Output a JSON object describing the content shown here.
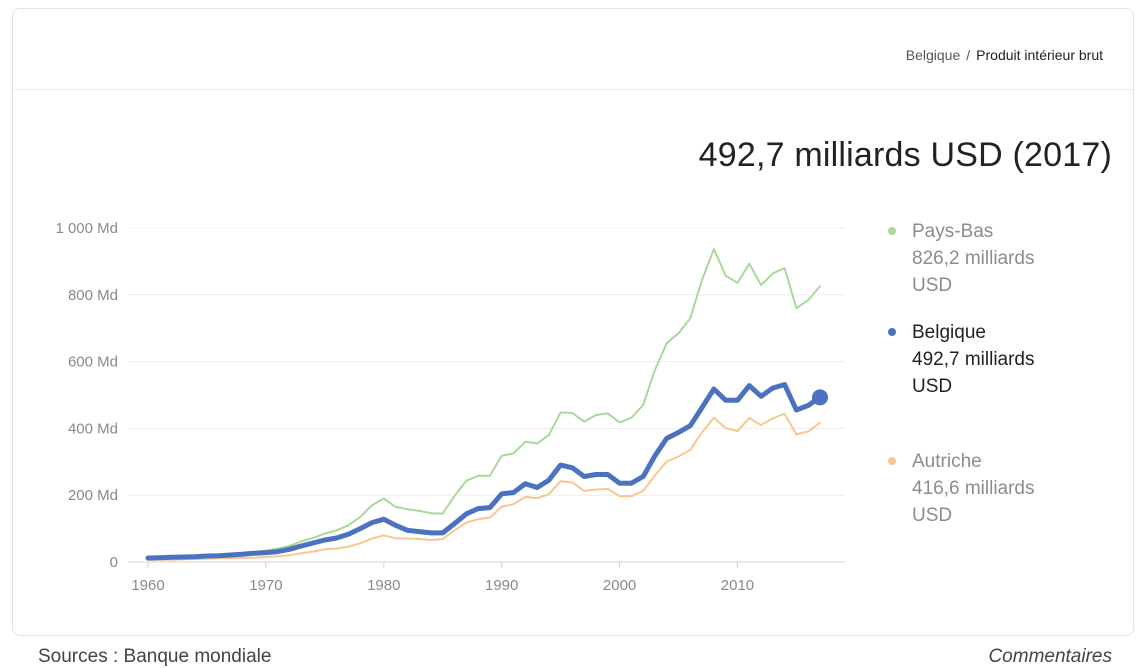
{
  "header": {
    "breadcrumb_country": "Belgique",
    "breadcrumb_separator": "/",
    "breadcrumb_indicator": "Produit intérieur brut"
  },
  "headline": "492,7 milliards USD (2017)",
  "legend": [
    {
      "name": "Pays-Bas",
      "value_line1": "826,2 milliards",
      "value_line2": "USD",
      "color": "#a8d99a",
      "emphasis": false
    },
    {
      "name": "Belgique",
      "value_line1": "492,7 milliards",
      "value_line2": "USD",
      "color": "#4a72c0",
      "emphasis": true
    },
    {
      "name": "Autriche",
      "value_line1": "416,6 milliards",
      "value_line2": "USD",
      "color": "#f7c791",
      "emphasis": false
    }
  ],
  "footer": {
    "sources": "Sources : Banque mondiale",
    "feedback": "Commentaires"
  },
  "chart_data": {
    "type": "line",
    "title": "",
    "xlabel": "",
    "ylabel": "",
    "xlim": [
      1960,
      2017
    ],
    "ylim": [
      0,
      1000
    ],
    "grid": true,
    "legend_position": "right",
    "x_ticks": [
      1960,
      1970,
      1980,
      1990,
      2000,
      2010
    ],
    "y_ticks": [
      0,
      200,
      400,
      600,
      800,
      1000
    ],
    "y_tick_labels": [
      "0",
      "200 Md",
      "400 Md",
      "600 Md",
      "800 Md",
      "1 000 Md"
    ],
    "x": [
      1960,
      1961,
      1962,
      1963,
      1964,
      1965,
      1966,
      1967,
      1968,
      1969,
      1970,
      1971,
      1972,
      1973,
      1974,
      1975,
      1976,
      1977,
      1978,
      1979,
      1980,
      1981,
      1982,
      1983,
      1984,
      1985,
      1986,
      1987,
      1988,
      1989,
      1990,
      1991,
      1992,
      1993,
      1994,
      1995,
      1996,
      1997,
      1998,
      1999,
      2000,
      2001,
      2002,
      2003,
      2004,
      2005,
      2006,
      2007,
      2008,
      2009,
      2010,
      2011,
      2012,
      2013,
      2014,
      2015,
      2016,
      2017
    ],
    "series": [
      {
        "name": "Pays-Bas",
        "color": "#a8d99a",
        "stroke_width": 2,
        "values": [
          12,
          13,
          14,
          15,
          17,
          19,
          21,
          22,
          24,
          28,
          34,
          40,
          48,
          62,
          72,
          85,
          95,
          110,
          135,
          170,
          190,
          165,
          158,
          153,
          146,
          145,
          198,
          243,
          258,
          258,
          318,
          325,
          360,
          355,
          380,
          448,
          446,
          420,
          440,
          445,
          418,
          432,
          470,
          575,
          655,
          685,
          730,
          845,
          937,
          857,
          836,
          893,
          829,
          864,
          880,
          760,
          784,
          826
        ]
      },
      {
        "name": "Autriche",
        "color": "#f7c791",
        "stroke_width": 2,
        "values": [
          6,
          7,
          7,
          8,
          9,
          10,
          11,
          11,
          12,
          13,
          15,
          17,
          20,
          26,
          31,
          38,
          40,
          46,
          56,
          70,
          80,
          71,
          70,
          69,
          66,
          69,
          95,
          118,
          128,
          133,
          166,
          173,
          195,
          191,
          203,
          242,
          238,
          213,
          217,
          219,
          197,
          197,
          213,
          259,
          301,
          316,
          336,
          389,
          432,
          401,
          392,
          431,
          410,
          430,
          444,
          382,
          391,
          417
        ]
      },
      {
        "name": "Belgique",
        "color": "#4a72c0",
        "stroke_width": 5,
        "values": [
          12,
          13,
          14,
          15,
          16,
          18,
          19,
          21,
          23,
          26,
          28,
          31,
          38,
          48,
          57,
          66,
          72,
          83,
          100,
          118,
          128,
          110,
          95,
          91,
          87,
          87,
          115,
          144,
          160,
          163,
          204,
          208,
          234,
          223,
          245,
          290,
          282,
          256,
          262,
          262,
          236,
          236,
          256,
          318,
          370,
          388,
          408,
          463,
          518,
          484,
          484,
          528,
          496,
          521,
          531,
          455,
          469,
          493
        ]
      }
    ],
    "highlight_point": {
      "series": "Belgique",
      "x": 2017,
      "y": 493
    }
  }
}
